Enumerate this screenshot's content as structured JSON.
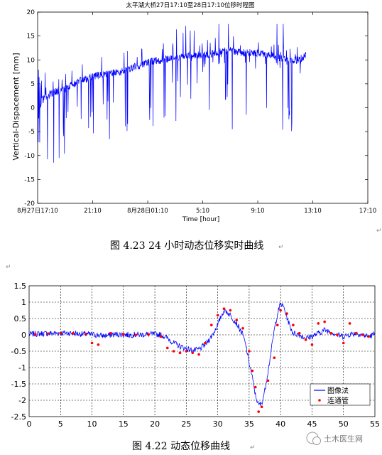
{
  "chart_data": [
    {
      "type": "line",
      "title": "太平湖大桥27日17:10至28日17:10位移时程图",
      "xlabel": "Time  [hour]",
      "ylabel": "Vertical-Dispacement  [mm]",
      "ylim": [
        -20,
        20
      ],
      "yticks": [
        "20",
        "15",
        "10",
        "5",
        "0",
        "-5",
        "-10",
        "-15",
        "-20"
      ],
      "xticks": [
        "8月27日17:10",
        "21:10",
        "8月28日01:10",
        "5:10",
        "9:10",
        "13:10",
        "17:10"
      ],
      "grid": false,
      "series_color": "#0000ff",
      "trend": [
        {
          "x": 0,
          "y": 1
        },
        {
          "x": 1,
          "y": 3
        },
        {
          "x": 2,
          "y": 4
        },
        {
          "x": 3,
          "y": 5.5
        },
        {
          "x": 4,
          "y": 6.5
        },
        {
          "x": 5,
          "y": 7
        },
        {
          "x": 6,
          "y": 7.5
        },
        {
          "x": 7,
          "y": 8.5
        },
        {
          "x": 8,
          "y": 9.5
        },
        {
          "x": 9,
          "y": 10
        },
        {
          "x": 10,
          "y": 10.5
        },
        {
          "x": 11,
          "y": 11
        },
        {
          "x": 12,
          "y": 11
        },
        {
          "x": 13,
          "y": 11.5
        },
        {
          "x": 14,
          "y": 12
        },
        {
          "x": 15,
          "y": 11.5
        },
        {
          "x": 16,
          "y": 11.5
        },
        {
          "x": 17,
          "y": 11
        },
        {
          "x": 18,
          "y": 10
        },
        {
          "x": 19,
          "y": 10
        },
        {
          "x": 19.5,
          "y": 11
        }
      ],
      "caption": "图 4.23    24 小时动态位移实时曲线"
    },
    {
      "type": "line",
      "xlim": [
        0,
        55
      ],
      "ylim": [
        -2.5,
        1.5
      ],
      "xticks": [
        "0",
        "5",
        "10",
        "15",
        "20",
        "25",
        "30",
        "35",
        "40",
        "45",
        "50",
        "55"
      ],
      "yticks": [
        "1.5",
        "1",
        "0.5",
        "0",
        "-0.5",
        "-1",
        "-1.5",
        "-2",
        "-2.5"
      ],
      "grid": true,
      "legend_position": "lower-right",
      "series": [
        {
          "name": "图像法",
          "color": "#0000ff",
          "x": [
            0,
            2,
            4,
            6,
            8,
            10,
            12,
            14,
            16,
            18,
            20,
            21,
            22,
            23,
            24,
            25,
            26,
            27,
            28,
            29,
            30,
            30.5,
            31,
            31.5,
            32,
            33,
            34,
            34.5,
            35,
            35.5,
            36,
            36.5,
            37,
            37.5,
            38,
            38.5,
            39,
            39.5,
            40,
            40.5,
            41,
            41.5,
            42,
            43,
            44,
            45,
            46,
            47,
            48,
            49,
            50,
            51,
            52,
            53,
            54,
            55
          ],
          "y": [
            0.02,
            0.04,
            0.05,
            0.06,
            0.03,
            0.01,
            -0.03,
            0.02,
            0.0,
            0.01,
            0.02,
            0.0,
            -0.1,
            -0.25,
            -0.35,
            -0.42,
            -0.48,
            -0.45,
            -0.3,
            -0.05,
            0.3,
            0.55,
            0.75,
            0.7,
            0.6,
            0.35,
            0.0,
            -0.35,
            -0.85,
            -1.3,
            -1.85,
            -2.15,
            -2.1,
            -1.7,
            -1.1,
            -0.5,
            0.15,
            0.65,
            0.95,
            0.85,
            0.55,
            0.25,
            0.05,
            0.0,
            -0.1,
            -0.05,
            0.05,
            0.15,
            0.1,
            0.0,
            -0.05,
            0.02,
            0.05,
            0.0,
            -0.05,
            0.02
          ]
        },
        {
          "name": "连通管",
          "color": "#ff0000",
          "x": [
            1,
            3,
            5,
            7,
            9,
            10,
            11,
            13,
            15,
            17,
            19,
            21,
            22,
            23,
            24,
            25,
            26,
            27,
            28,
            29,
            30,
            31,
            32,
            33,
            34,
            35,
            35.5,
            36,
            36.5,
            37,
            38,
            39,
            39.5,
            40,
            41,
            42,
            43,
            44,
            45,
            46,
            47,
            48,
            49,
            50,
            51,
            52,
            53,
            54
          ],
          "y": [
            0.02,
            0.04,
            0.05,
            0.05,
            0.03,
            -0.25,
            -0.3,
            0.05,
            0.02,
            0.0,
            0.01,
            -0.05,
            -0.4,
            -0.5,
            -0.55,
            -0.5,
            -0.55,
            -0.6,
            -0.25,
            0.3,
            0.6,
            0.8,
            0.75,
            0.45,
            0.2,
            -0.5,
            -1.1,
            -1.6,
            -2.35,
            -2.2,
            -1.4,
            -0.7,
            0.3,
            0.75,
            0.65,
            0.3,
            0.05,
            -0.15,
            -0.3,
            0.35,
            0.4,
            0.05,
            0.0,
            -0.25,
            0.35,
            0.05,
            0.0,
            -0.05
          ]
        }
      ],
      "caption": "图 4.22  动态位移曲线"
    }
  ],
  "watermark": {
    "text": "土木医生网"
  },
  "markers": {
    "return_arrow": "↵"
  }
}
